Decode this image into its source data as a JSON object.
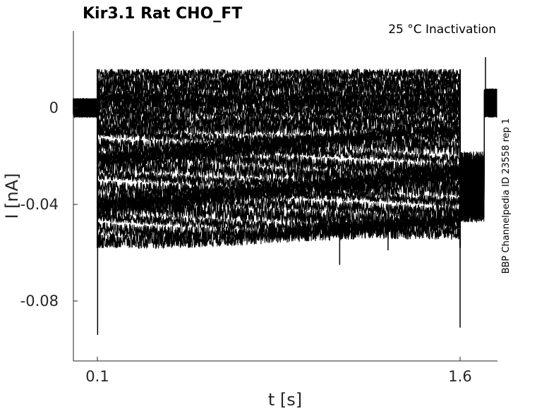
{
  "chart_data": {
    "type": "line",
    "title": "Kir3.1  Rat  CHO_FT",
    "subtitle": "25 °C  Inactivation",
    "side_label": "BBP Channelpedia ID 23558 rep 1",
    "xlabel": "t [s]",
    "ylabel": "I [nA]",
    "xlim": [
      0.0,
      1.65
    ],
    "ylim": [
      -0.105,
      0.032
    ],
    "xticks": [
      0.1,
      1.6
    ],
    "xtick_labels": [
      "0.1",
      "1.6"
    ],
    "yticks": [
      0,
      -0.04,
      -0.08
    ],
    "ytick_labels": [
      "0",
      "-0.04",
      "-0.08"
    ],
    "grid": false,
    "legend": "none",
    "line_color": "#000000",
    "protocol": {
      "baseline_before": [
        0.0,
        0.1
      ],
      "step": [
        0.1,
        1.6
      ],
      "tail": [
        1.6,
        1.7
      ],
      "recovery": [
        1.7,
        1.76
      ]
    },
    "sweep_levels": [
      0.014,
      0.011,
      0.008,
      0.005,
      0.003,
      0.001,
      -0.002,
      -0.005,
      -0.008,
      -0.011,
      -0.014,
      -0.017,
      -0.02,
      -0.023,
      -0.026,
      -0.029,
      -0.032,
      -0.035,
      -0.038,
      -0.041,
      -0.044,
      -0.047,
      -0.05,
      -0.053
    ],
    "spikes": [
      {
        "t": 0.101,
        "value": -0.094
      },
      {
        "t": 1.6,
        "value": -0.091
      },
      {
        "t": 1.102,
        "value": -0.065
      },
      {
        "t": 1.302,
        "value": -0.059
      },
      {
        "t": 1.705,
        "value": 0.021
      }
    ]
  }
}
